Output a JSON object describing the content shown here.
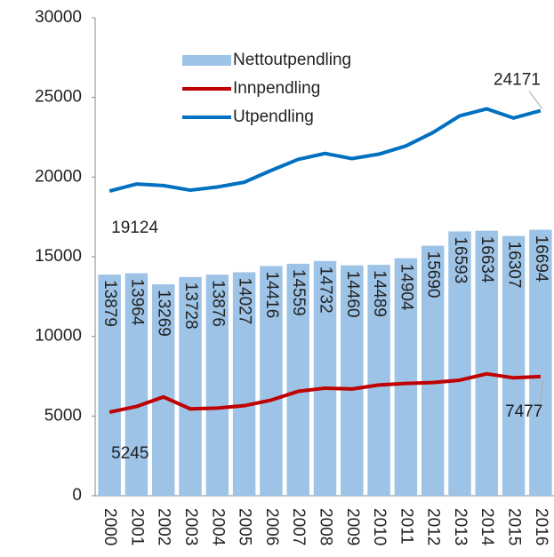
{
  "chart_data": {
    "type": "bar",
    "categories": [
      "2000",
      "2001",
      "2002",
      "2003",
      "2004",
      "2005",
      "2006",
      "2007",
      "2008",
      "2009",
      "2010",
      "2011",
      "2012",
      "2013",
      "2014",
      "2015",
      "2016"
    ],
    "series": [
      {
        "name": "Nettoutpendling",
        "type": "bar",
        "color": "#9dc3e6",
        "values": [
          13879,
          13964,
          13269,
          13728,
          13876,
          14027,
          14416,
          14559,
          14732,
          14460,
          14489,
          14904,
          15690,
          16593,
          16634,
          16307,
          16694
        ]
      },
      {
        "name": "Innpendling",
        "type": "line",
        "color": "#c00000",
        "values": [
          5245,
          5600,
          6200,
          5450,
          5500,
          5650,
          6000,
          6550,
          6750,
          6700,
          6950,
          7050,
          7100,
          7250,
          7650,
          7400,
          7477
        ]
      },
      {
        "name": "Utpendling",
        "type": "line",
        "color": "#0070c0",
        "values": [
          19124,
          19564,
          19469,
          19178,
          19376,
          19677,
          20416,
          21109,
          21482,
          21160,
          21439,
          21954,
          22790,
          23843,
          24284,
          23707,
          24171
        ]
      }
    ],
    "ylim": [
      0,
      30000
    ],
    "yticks": [
      0,
      5000,
      10000,
      15000,
      20000,
      25000,
      30000
    ]
  }
}
